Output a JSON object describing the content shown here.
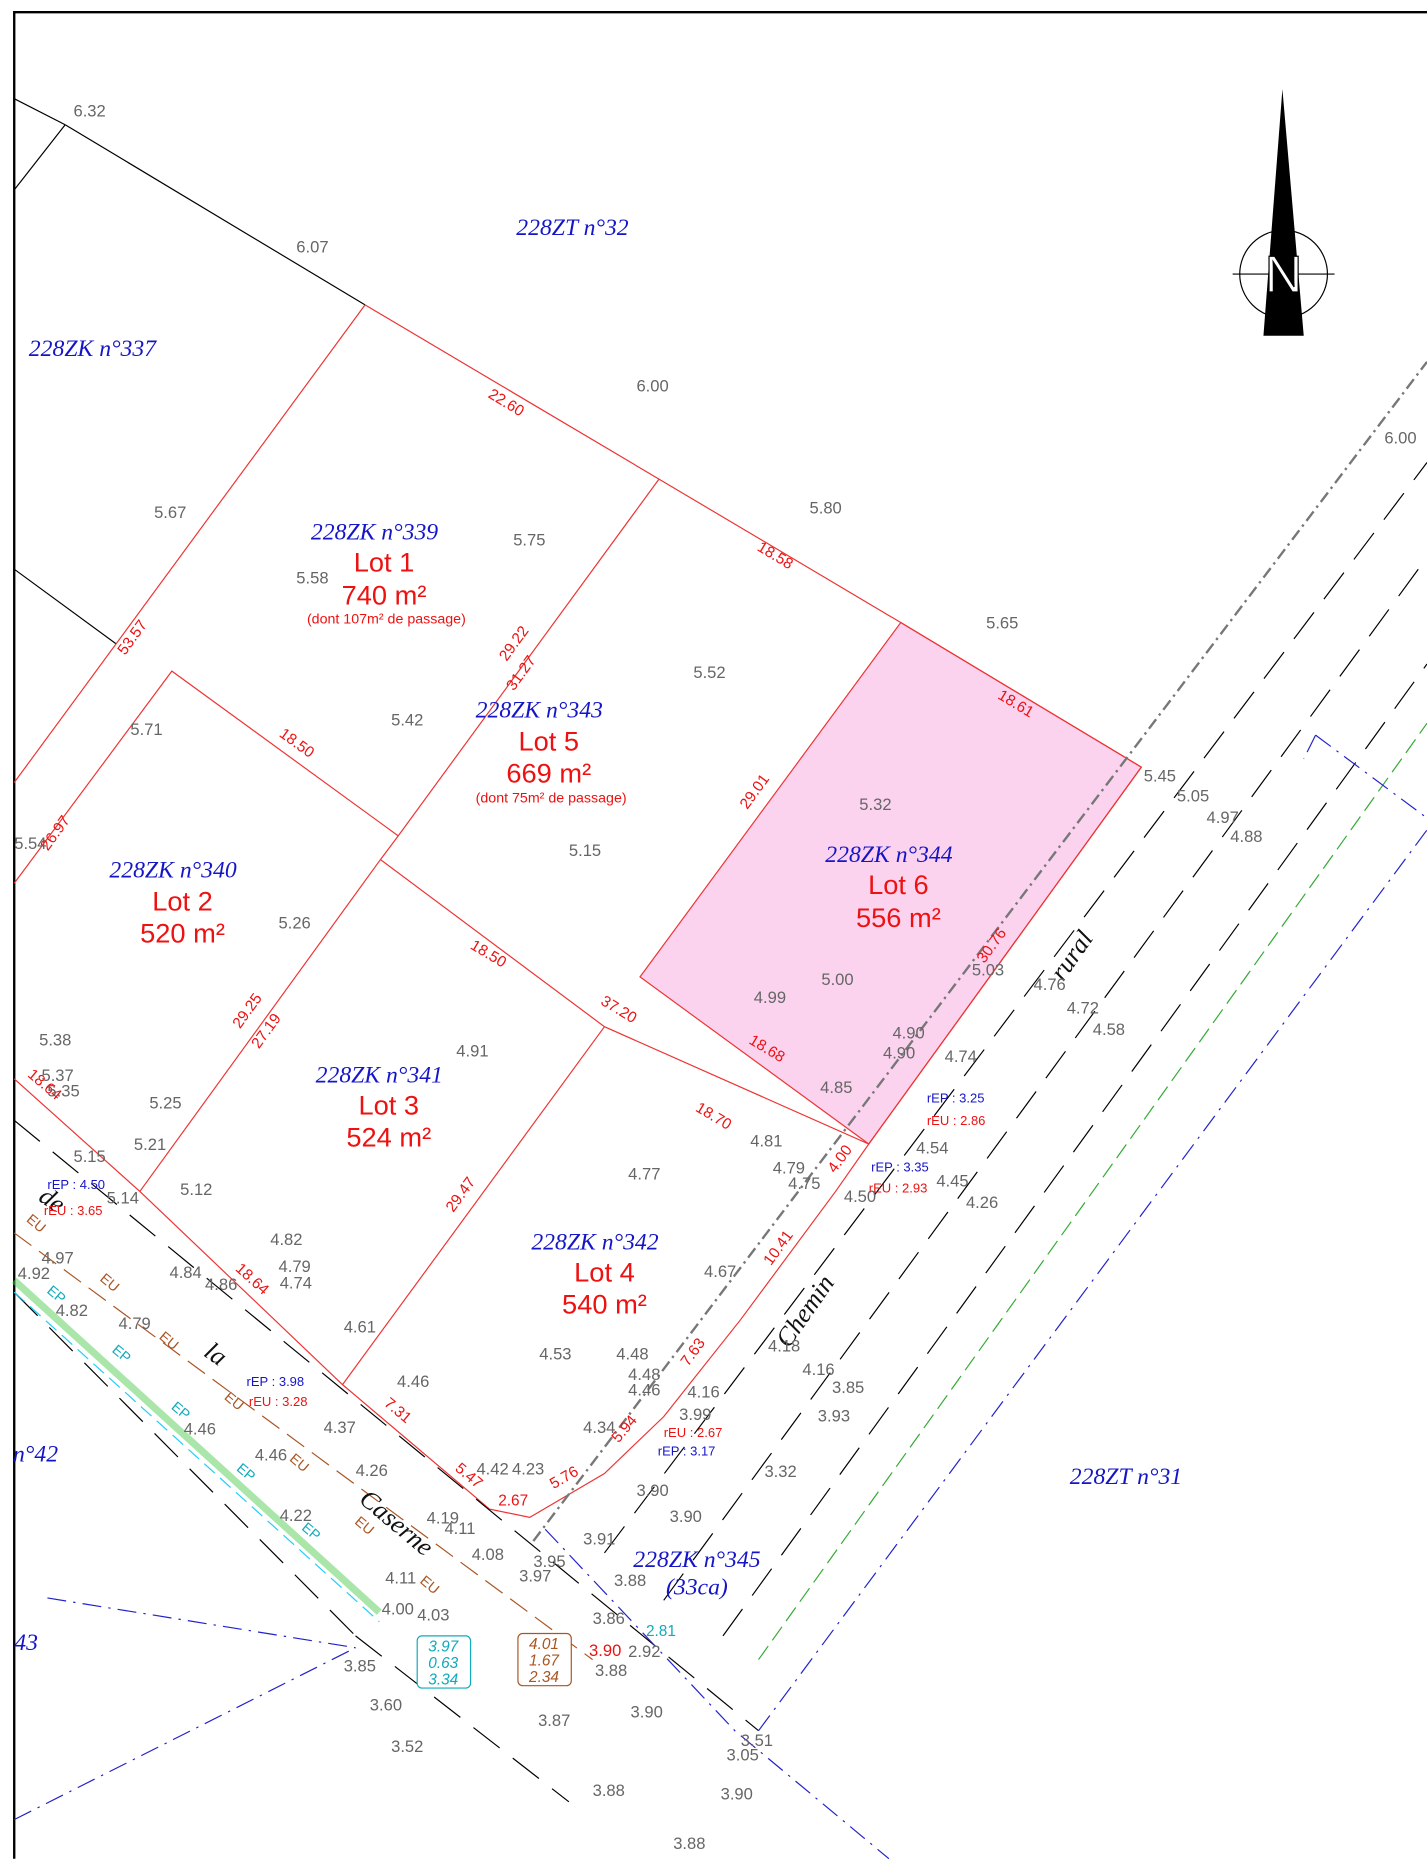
{
  "neighbors": [
    "228ZT n°32",
    "228ZK n°337",
    "228ZT n°31",
    "228ZK n°345",
    "(33ca)",
    "n°42",
    "43"
  ],
  "lots": [
    {
      "parcel": "228ZK n°339",
      "name": "Lot 1",
      "area": "740 m²",
      "note": "(dont 107m² de passage)"
    },
    {
      "parcel": "228ZK n°343",
      "name": "Lot 5",
      "area": "669 m²",
      "note": "(dont 75m² de passage)"
    },
    {
      "parcel": "228ZK n°340",
      "name": "Lot 2",
      "area": "520 m²"
    },
    {
      "parcel": "228ZK n°341",
      "name": "Lot 3",
      "area": "524 m²"
    },
    {
      "parcel": "228ZK n°342",
      "name": "Lot 4",
      "area": "540 m²"
    },
    {
      "parcel": "228ZK n°344",
      "name": "Lot 6",
      "area": "556 m²"
    }
  ],
  "roads": [
    "Chemin",
    "rural",
    "de",
    "la",
    "Caserne"
  ],
  "north": "N",
  "dimensions": [
    "22.60",
    "18.58",
    "18.61",
    "53.57",
    "29.22",
    "31.27",
    "18.50",
    "26.97",
    "29.01",
    "30.76",
    "18.50",
    "37.20",
    "18.68",
    "29.25",
    "27.19",
    "18.70",
    "4.00",
    "29.47",
    "10.41",
    "18.64",
    "18.64",
    "7.63",
    "5.94",
    "7.31",
    "5.47",
    "2.67",
    "5.76"
  ],
  "networks": [
    "rEP : 4.50",
    "rEU : 3.65",
    "rEP : 3.98",
    "rEU : 3.28",
    "rEP : 3.25",
    "rEU : 2.86",
    "rEP : 3.35",
    "rEU : 2.93",
    "rEU : 2.67",
    "rEP : 3.17"
  ],
  "network_codes": [
    "EU",
    "EU",
    "EU",
    "EU",
    "EU",
    "EU",
    "EU",
    "EP",
    "EP",
    "EP",
    "EP",
    "EP"
  ],
  "boxes": [
    [
      "3.97",
      "0.63",
      "3.34"
    ],
    [
      "4.01",
      "1.67",
      "2.34"
    ]
  ],
  "marks": [
    "3.90",
    "2.81"
  ],
  "elevations": [
    "6.32",
    "6.07",
    "6.00",
    "5.67",
    "5.75",
    "5.58",
    "5.80",
    "5.65",
    "5.52",
    "5.42",
    "5.71",
    "5.32",
    "5.15",
    "5.54",
    "5.26",
    "5.45",
    "5.05",
    "4.97",
    "4.88",
    "5.00",
    "4.99",
    "5.03",
    "4.76",
    "4.72",
    "4.58",
    "4.90",
    "4.90",
    "4.74",
    "4.91",
    "5.38",
    "5.37",
    "5.35",
    "5.25",
    "4.85",
    "4.81",
    "5.21",
    "5.15",
    "4.54",
    "4.79",
    "4.75",
    "4.50",
    "4.45",
    "4.77",
    "5.12",
    "5.14",
    "4.26",
    "4.82",
    "4.97",
    "4.79",
    "4.92",
    "4.84",
    "4.86",
    "4.74",
    "4.67",
    "4.82",
    "4.79",
    "4.61",
    "4.18",
    "4.53",
    "4.48",
    "4.16",
    "4.48",
    "4.46",
    "4.16",
    "3.85",
    "4.46",
    "3.99",
    "3.93",
    "4.37",
    "4.34",
    "4.46",
    "4.42",
    "4.23",
    "4.26",
    "3.32",
    "4.46",
    "3.90",
    "3.90",
    "4.19",
    "4.11",
    "3.91",
    "4.22",
    "4.08",
    "3.95",
    "3.97",
    "3.88",
    "4.11",
    "4.00",
    "4.03",
    "3.86",
    "2.92",
    "3.88",
    "3.85",
    "3.60",
    "3.90",
    "3.87",
    "3.52",
    "3.51",
    "3.05",
    "3.88",
    "3.90",
    "3.88",
    "6.00"
  ]
}
